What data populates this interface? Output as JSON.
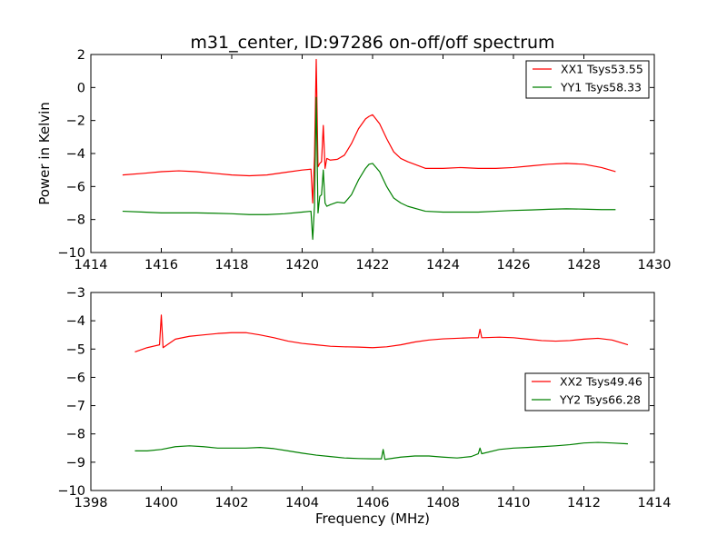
{
  "figure": {
    "title": "m31_center, ID:97286 on-off/off spectrum",
    "background": "#ffffff"
  },
  "chart_data": [
    {
      "type": "line",
      "title": "m31_center, ID:97286 on-off/off spectrum",
      "xlabel": "",
      "ylabel": "Power in Kelvin",
      "xlim": [
        1414,
        1430
      ],
      "ylim": [
        -10,
        2
      ],
      "xticks": [
        1414,
        1416,
        1418,
        1420,
        1422,
        1424,
        1426,
        1428,
        1430
      ],
      "yticks": [
        -10,
        -8,
        -6,
        -4,
        -2,
        0,
        2
      ],
      "xtick_labels": [
        "1414",
        "1416",
        "1418",
        "1420",
        "1422",
        "1424",
        "1426",
        "1428",
        "1430"
      ],
      "ytick_labels": [
        "−10",
        "−8",
        "−6",
        "−4",
        "−2",
        "0",
        "2"
      ],
      "grid": false,
      "legend": "top-right",
      "series": [
        {
          "name": "XX1 Tsys53.55",
          "color": "#ff0000",
          "x": [
            1414.9,
            1415.5,
            1416.0,
            1416.5,
            1417.0,
            1417.5,
            1418.0,
            1418.5,
            1419.0,
            1419.5,
            1420.0,
            1420.25,
            1420.3,
            1420.35,
            1420.4,
            1420.45,
            1420.5,
            1420.55,
            1420.6,
            1420.65,
            1420.7,
            1420.8,
            1421.0,
            1421.2,
            1421.4,
            1421.6,
            1421.8,
            1421.9,
            1422.0,
            1422.2,
            1422.4,
            1422.6,
            1422.8,
            1423.0,
            1423.5,
            1424.0,
            1424.5,
            1425.0,
            1425.5,
            1426.0,
            1426.5,
            1427.0,
            1427.5,
            1428.0,
            1428.5,
            1428.9
          ],
          "values": [
            -5.3,
            -5.2,
            -5.1,
            -5.05,
            -5.1,
            -5.2,
            -5.3,
            -5.35,
            -5.3,
            -5.15,
            -5.0,
            -4.95,
            -7.0,
            -4.2,
            1.7,
            -4.8,
            -4.6,
            -4.5,
            -2.3,
            -4.9,
            -4.3,
            -4.4,
            -4.35,
            -4.1,
            -3.4,
            -2.5,
            -1.9,
            -1.75,
            -1.65,
            -2.2,
            -3.1,
            -3.9,
            -4.3,
            -4.5,
            -4.9,
            -4.9,
            -4.85,
            -4.9,
            -4.9,
            -4.85,
            -4.75,
            -4.65,
            -4.6,
            -4.65,
            -4.85,
            -5.1
          ]
        },
        {
          "name": "YY1 Tsys58.33",
          "color": "#008000",
          "x": [
            1414.9,
            1415.5,
            1416.0,
            1416.5,
            1417.0,
            1417.5,
            1418.0,
            1418.5,
            1419.0,
            1419.5,
            1420.0,
            1420.25,
            1420.3,
            1420.35,
            1420.4,
            1420.45,
            1420.5,
            1420.55,
            1420.6,
            1420.65,
            1420.7,
            1420.8,
            1421.0,
            1421.2,
            1421.4,
            1421.6,
            1421.8,
            1421.9,
            1422.0,
            1422.2,
            1422.4,
            1422.6,
            1422.8,
            1423.0,
            1423.5,
            1424.0,
            1424.5,
            1425.0,
            1425.5,
            1426.0,
            1426.5,
            1427.0,
            1427.5,
            1428.0,
            1428.5,
            1428.9
          ],
          "values": [
            -7.5,
            -7.55,
            -7.6,
            -7.6,
            -7.6,
            -7.62,
            -7.65,
            -7.7,
            -7.7,
            -7.65,
            -7.55,
            -7.5,
            -9.2,
            -7.2,
            -0.6,
            -7.6,
            -6.6,
            -6.5,
            -5.0,
            -7.0,
            -7.2,
            -7.1,
            -6.95,
            -7.0,
            -6.5,
            -5.6,
            -4.9,
            -4.65,
            -4.6,
            -5.1,
            -6.0,
            -6.7,
            -7.0,
            -7.2,
            -7.5,
            -7.55,
            -7.55,
            -7.55,
            -7.5,
            -7.45,
            -7.42,
            -7.38,
            -7.35,
            -7.37,
            -7.4,
            -7.4
          ]
        }
      ]
    },
    {
      "type": "line",
      "title": "",
      "xlabel": "Frequency (MHz)",
      "ylabel": "",
      "xlim": [
        1398,
        1414
      ],
      "ylim": [
        -10,
        -3
      ],
      "xticks": [
        1398,
        1400,
        1402,
        1404,
        1406,
        1408,
        1410,
        1412,
        1414
      ],
      "yticks": [
        -10,
        -9,
        -8,
        -7,
        -6,
        -5,
        -4,
        -3
      ],
      "xtick_labels": [
        "1398",
        "1400",
        "1402",
        "1404",
        "1406",
        "1408",
        "1410",
        "1412",
        "1414"
      ],
      "ytick_labels": [
        "−10",
        "−9",
        "−8",
        "−7",
        "−6",
        "−5",
        "−4",
        "−3"
      ],
      "grid": false,
      "legend": "center-right",
      "series": [
        {
          "name": "XX2 Tsys49.46",
          "color": "#ff0000",
          "x": [
            1399.25,
            1399.6,
            1399.95,
            1400.0,
            1400.05,
            1400.4,
            1400.8,
            1401.2,
            1401.6,
            1402.0,
            1402.4,
            1402.8,
            1403.2,
            1403.6,
            1404.0,
            1404.4,
            1404.8,
            1405.2,
            1405.6,
            1406.0,
            1406.4,
            1406.8,
            1407.2,
            1407.6,
            1408.0,
            1408.4,
            1408.8,
            1409.0,
            1409.05,
            1409.1,
            1409.6,
            1410.0,
            1410.4,
            1410.8,
            1411.2,
            1411.6,
            1412.0,
            1412.4,
            1412.8,
            1413.25
          ],
          "values": [
            -5.1,
            -4.95,
            -4.85,
            -3.8,
            -4.95,
            -4.65,
            -4.55,
            -4.5,
            -4.45,
            -4.42,
            -4.42,
            -4.5,
            -4.6,
            -4.72,
            -4.8,
            -4.85,
            -4.9,
            -4.92,
            -4.93,
            -4.95,
            -4.92,
            -4.85,
            -4.75,
            -4.68,
            -4.64,
            -4.62,
            -4.6,
            -4.6,
            -4.3,
            -4.6,
            -4.58,
            -4.6,
            -4.65,
            -4.7,
            -4.72,
            -4.7,
            -4.65,
            -4.62,
            -4.68,
            -4.85
          ]
        },
        {
          "name": "YY2 Tsys66.28",
          "color": "#008000",
          "x": [
            1399.25,
            1399.6,
            1400.0,
            1400.4,
            1400.8,
            1401.2,
            1401.6,
            1402.0,
            1402.4,
            1402.8,
            1403.2,
            1403.6,
            1404.0,
            1404.4,
            1404.8,
            1405.2,
            1405.6,
            1406.0,
            1406.25,
            1406.3,
            1406.35,
            1406.8,
            1407.2,
            1407.6,
            1408.0,
            1408.4,
            1408.8,
            1409.0,
            1409.05,
            1409.1,
            1409.6,
            1410.0,
            1410.4,
            1410.8,
            1411.2,
            1411.6,
            1412.0,
            1412.4,
            1412.8,
            1413.25
          ],
          "values": [
            -8.6,
            -8.6,
            -8.55,
            -8.45,
            -8.42,
            -8.45,
            -8.5,
            -8.5,
            -8.5,
            -8.48,
            -8.52,
            -8.6,
            -8.68,
            -8.75,
            -8.8,
            -8.85,
            -8.87,
            -8.88,
            -8.88,
            -8.55,
            -8.9,
            -8.82,
            -8.78,
            -8.78,
            -8.82,
            -8.85,
            -8.8,
            -8.7,
            -8.5,
            -8.7,
            -8.55,
            -8.5,
            -8.48,
            -8.45,
            -8.42,
            -8.38,
            -8.32,
            -8.3,
            -8.32,
            -8.35
          ]
        }
      ]
    }
  ]
}
